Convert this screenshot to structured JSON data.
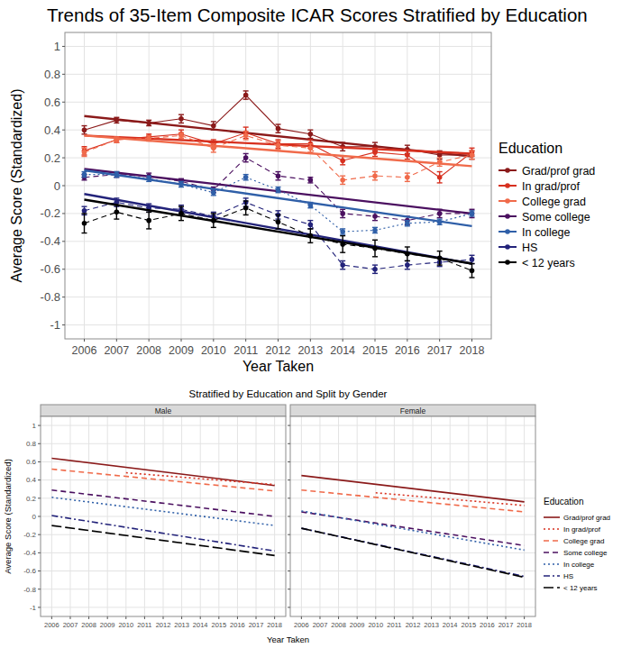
{
  "chart_data": [
    {
      "type": "line",
      "title": "Trends of 35-Item Composite ICAR Scores Stratified by Education",
      "x_label": "Year Taken",
      "y_label": "Average Score (Standardized)",
      "legend_title": "Education",
      "legend": "right",
      "grid": true,
      "marker": "circle",
      "x": [
        2006,
        2007,
        2008,
        2009,
        2010,
        2011,
        2012,
        2013,
        2014,
        2015,
        2016,
        2017,
        2018
      ],
      "xlim": [
        2005.4,
        2018.6
      ],
      "xticks": [
        2006,
        2007,
        2008,
        2009,
        2010,
        2011,
        2012,
        2013,
        2014,
        2015,
        2016,
        2017,
        2018
      ],
      "ylim": [
        -1.1,
        1.1
      ],
      "yticks": [
        -1,
        -0.8,
        -0.6,
        -0.4,
        -0.2,
        0,
        0.2,
        0.4,
        0.6,
        0.8,
        1
      ],
      "series": [
        {
          "name": "Grad/prof grad",
          "color": "#8b1a1a",
          "line_style": "solid",
          "values": [
            0.4,
            0.47,
            0.45,
            0.48,
            0.43,
            0.65,
            0.41,
            0.37,
            0.28,
            0.28,
            0.26,
            0.22,
            0.22
          ],
          "errors": [
            0.03,
            0.02,
            0.02,
            0.03,
            0.03,
            0.03,
            0.03,
            0.03,
            0.03,
            0.03,
            0.03,
            0.03,
            0.03
          ],
          "trend": {
            "x": [
              2006,
              2018
            ],
            "values": [
              0.5,
              0.21
            ]
          }
        },
        {
          "name": "In grad/prof",
          "color": "#d7301f",
          "line_style": "solid",
          "values": [
            0.25,
            0.33,
            0.35,
            0.37,
            0.3,
            0.38,
            0.3,
            0.3,
            0.18,
            0.24,
            0.22,
            0.06,
            0.24
          ],
          "errors": [
            0.03,
            0.02,
            0.02,
            0.03,
            0.03,
            0.04,
            0.03,
            0.03,
            0.03,
            0.03,
            0.03,
            0.04,
            0.03
          ],
          "trend": {
            "x": [
              2006,
              2018
            ],
            "values": [
              0.36,
              0.23
            ]
          }
        },
        {
          "name": "College grad",
          "color": "#f06a4a",
          "line_style": "dashed",
          "values": [
            0.24,
            0.33,
            0.34,
            0.36,
            0.27,
            0.36,
            0.29,
            0.27,
            0.04,
            0.07,
            0.06,
            0.17,
            0.22
          ],
          "errors": [
            0.03,
            0.02,
            0.02,
            0.02,
            0.03,
            0.03,
            0.03,
            0.03,
            0.03,
            0.03,
            0.03,
            0.03,
            0.03
          ],
          "trend": {
            "x": [
              2006,
              2018
            ],
            "values": [
              0.36,
              0.14
            ]
          }
        },
        {
          "name": "Some college",
          "color": "#4b1060",
          "line_style": "dashed",
          "values": [
            0.06,
            0.08,
            0.07,
            0.03,
            -0.03,
            0.2,
            0.07,
            0.04,
            -0.2,
            -0.22,
            -0.25,
            -0.2,
            -0.2
          ],
          "errors": [
            0.02,
            0.02,
            0.02,
            0.02,
            0.02,
            0.03,
            0.03,
            0.02,
            0.03,
            0.03,
            0.03,
            0.03,
            0.03
          ],
          "trend": {
            "x": [
              2006,
              2018
            ],
            "values": [
              0.12,
              -0.2
            ]
          }
        },
        {
          "name": "In college",
          "color": "#2f5fa8",
          "line_style": "dotted",
          "values": [
            0.08,
            0.08,
            0.05,
            0.01,
            -0.05,
            0.06,
            -0.03,
            -0.14,
            -0.33,
            -0.32,
            -0.27,
            -0.26,
            -0.2
          ],
          "errors": [
            0.02,
            0.02,
            0.02,
            0.02,
            0.02,
            0.02,
            0.02,
            0.02,
            0.02,
            0.02,
            0.02,
            0.02,
            0.02
          ],
          "trend": {
            "x": [
              2006,
              2018
            ],
            "values": [
              0.11,
              -0.29
            ]
          }
        },
        {
          "name": "HS",
          "color": "#23237a",
          "line_style": "dashed",
          "values": [
            -0.18,
            -0.12,
            -0.16,
            -0.17,
            -0.22,
            -0.12,
            -0.21,
            -0.28,
            -0.57,
            -0.6,
            -0.57,
            -0.55,
            -0.53
          ],
          "errors": [
            0.03,
            0.03,
            0.03,
            0.03,
            0.03,
            0.03,
            0.03,
            0.03,
            0.03,
            0.03,
            0.03,
            0.03,
            0.03
          ],
          "trend": {
            "x": [
              2006,
              2018
            ],
            "values": [
              -0.06,
              -0.56
            ]
          }
        },
        {
          "name": "< 12 years",
          "color": "#000000",
          "line_style": "dashed",
          "values": [
            -0.27,
            -0.19,
            -0.25,
            -0.2,
            -0.25,
            -0.16,
            -0.26,
            -0.36,
            -0.42,
            -0.45,
            -0.49,
            -0.52,
            -0.61
          ],
          "errors": [
            0.07,
            0.05,
            0.06,
            0.05,
            0.05,
            0.05,
            0.05,
            0.05,
            0.06,
            0.06,
            0.05,
            0.05,
            0.05
          ],
          "trend": {
            "x": [
              2006,
              2018
            ],
            "values": [
              -0.1,
              -0.56
            ]
          }
        }
      ]
    },
    {
      "type": "line",
      "title": "Stratified by Education and Split by Gender",
      "x_label": "Year Taken",
      "y_label": "Average Score (Standardized)",
      "legend_title": "Education",
      "legend": "right",
      "grid": true,
      "xlim": [
        2005.4,
        2018.6
      ],
      "xticks": [
        2006,
        2007,
        2008,
        2009,
        2010,
        2011,
        2012,
        2013,
        2014,
        2015,
        2016,
        2017,
        2018
      ],
      "ylim": [
        -1.1,
        1.1
      ],
      "yticks": [
        -1,
        -0.8,
        -0.6,
        -0.4,
        -0.2,
        0,
        0.2,
        0.4,
        0.6,
        0.8,
        1
      ],
      "series": [
        {
          "name": "Grad/prof grad",
          "color": "#8b1a1a",
          "line_style": "solid"
        },
        {
          "name": "In grad/prof",
          "color": "#d7301f",
          "line_style": "dotted"
        },
        {
          "name": "College grad",
          "color": "#f06a4a",
          "line_style": "dashed"
        },
        {
          "name": "Some college",
          "color": "#4b1060",
          "line_style": "dashed"
        },
        {
          "name": "In college",
          "color": "#2f5fa8",
          "line_style": "dotted"
        },
        {
          "name": "HS",
          "color": "#23237a",
          "line_style": "dotdash"
        },
        {
          "name": "< 12 years",
          "color": "#000000",
          "line_style": "longdash"
        }
      ],
      "panels": [
        {
          "title": "Male",
          "lines": [
            {
              "x": [
                2006,
                2018
              ],
              "values": [
                0.64,
                0.34
              ]
            },
            {
              "x": [
                2010,
                2018
              ],
              "values": [
                0.48,
                0.35
              ]
            },
            {
              "x": [
                2006,
                2018
              ],
              "values": [
                0.52,
                0.28
              ]
            },
            {
              "x": [
                2006,
                2018
              ],
              "values": [
                0.29,
                0.0
              ]
            },
            {
              "x": [
                2006,
                2018
              ],
              "values": [
                0.21,
                -0.1
              ]
            },
            {
              "x": [
                2006,
                2018
              ],
              "values": [
                0.01,
                -0.38
              ]
            },
            {
              "x": [
                2006,
                2018
              ],
              "values": [
                -0.1,
                -0.43
              ]
            }
          ]
        },
        {
          "title": "Female",
          "lines": [
            {
              "x": [
                2006,
                2018
              ],
              "values": [
                0.45,
                0.16
              ]
            },
            {
              "x": [
                2010,
                2018
              ],
              "values": [
                0.26,
                0.12
              ]
            },
            {
              "x": [
                2006,
                2018
              ],
              "values": [
                0.29,
                0.05
              ]
            },
            {
              "x": [
                2006,
                2018
              ],
              "values": [
                0.05,
                -0.32
              ]
            },
            {
              "x": [
                2006,
                2018
              ],
              "values": [
                0.06,
                -0.37
              ]
            },
            {
              "x": [
                2006,
                2018
              ],
              "values": [
                -0.13,
                -0.66
              ]
            },
            {
              "x": [
                2006,
                2018
              ],
              "values": [
                -0.13,
                -0.67
              ]
            }
          ]
        }
      ]
    }
  ]
}
